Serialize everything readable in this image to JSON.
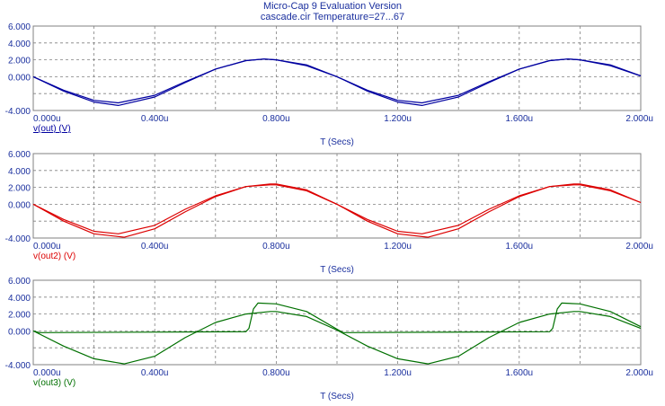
{
  "header": {
    "title": "Micro-Cap 9 Evaluation Version",
    "subtitle": "cascade.cir Temperature=27...67"
  },
  "chart_data": [
    {
      "type": "line",
      "xlabel": "T (Secs)",
      "trace_label": "v(out) (V)",
      "color": "#0000a0",
      "xlim": [
        0,
        2.0
      ],
      "ylim": [
        -4,
        6
      ],
      "x_ticks": [
        "0.000u",
        "0.400u",
        "0.800u",
        "1.200u",
        "1.600u",
        "2.000u"
      ],
      "y_ticks": [
        "6.000",
        "4.000",
        "2.000",
        "0.000",
        "-4.000"
      ],
      "grid": true,
      "series": [
        {
          "x": [
            0,
            0.1,
            0.2,
            0.28,
            0.4,
            0.5,
            0.6,
            0.7,
            0.76,
            0.8,
            0.9,
            1.0,
            1.1,
            1.2,
            1.28,
            1.4,
            1.5,
            1.6,
            1.7,
            1.76,
            1.8,
            1.9,
            2.0
          ],
          "values": [
            0,
            -1.6,
            -2.8,
            -3.1,
            -2.2,
            -0.6,
            0.9,
            1.9,
            2.1,
            2.0,
            1.3,
            0,
            -1.6,
            -2.8,
            -3.1,
            -2.2,
            -0.6,
            0.9,
            1.9,
            2.1,
            2.0,
            1.3,
            0.1
          ]
        },
        {
          "x": [
            0,
            0.1,
            0.2,
            0.28,
            0.4,
            0.5,
            0.6,
            0.7,
            0.76,
            0.8,
            0.9,
            1.0,
            1.1,
            1.2,
            1.28,
            1.4,
            1.5,
            1.6,
            1.7,
            1.76,
            1.8,
            1.9,
            2.0
          ],
          "values": [
            0,
            -1.7,
            -3.0,
            -3.4,
            -2.4,
            -0.7,
            0.9,
            1.9,
            2.1,
            2.0,
            1.4,
            0,
            -1.7,
            -3.0,
            -3.4,
            -2.4,
            -0.7,
            0.9,
            1.9,
            2.1,
            2.0,
            1.4,
            0.1
          ]
        }
      ]
    },
    {
      "type": "line",
      "xlabel": "T (Secs)",
      "trace_label": "v(out2) (V)",
      "color": "#dc0000",
      "xlim": [
        0,
        2.0
      ],
      "ylim": [
        -4,
        6
      ],
      "x_ticks": [
        "0.000u",
        "0.400u",
        "0.800u",
        "1.200u",
        "1.600u",
        "2.000u"
      ],
      "y_ticks": [
        "6.000",
        "4.000",
        "2.000",
        "0.000",
        "-4.000"
      ],
      "grid": true,
      "series": [
        {
          "x": [
            0,
            0.1,
            0.2,
            0.28,
            0.4,
            0.5,
            0.6,
            0.7,
            0.78,
            0.8,
            0.9,
            1.0,
            1.1,
            1.2,
            1.28,
            1.4,
            1.5,
            1.6,
            1.7,
            1.78,
            1.8,
            1.9,
            2.0
          ],
          "values": [
            0,
            -1.8,
            -3.2,
            -3.5,
            -2.5,
            -0.6,
            1.0,
            2.1,
            2.3,
            2.3,
            1.6,
            0,
            -1.8,
            -3.2,
            -3.5,
            -2.5,
            -0.6,
            1.0,
            2.1,
            2.3,
            2.3,
            1.6,
            0.2
          ]
        },
        {
          "x": [
            0,
            0.1,
            0.2,
            0.3,
            0.4,
            0.5,
            0.6,
            0.7,
            0.78,
            0.8,
            0.9,
            1.0,
            1.1,
            1.2,
            1.3,
            1.4,
            1.5,
            1.6,
            1.7,
            1.78,
            1.8,
            1.9,
            2.0
          ],
          "values": [
            0,
            -2.0,
            -3.5,
            -3.9,
            -2.9,
            -0.9,
            0.9,
            2.1,
            2.4,
            2.4,
            1.7,
            0,
            -2.0,
            -3.5,
            -3.9,
            -2.9,
            -0.9,
            0.9,
            2.1,
            2.4,
            2.4,
            1.7,
            0.2
          ]
        }
      ]
    },
    {
      "type": "line",
      "xlabel": "T (Secs)",
      "trace_label": "v(out3) (V)",
      "color": "#007000",
      "xlim": [
        0,
        2.0
      ],
      "ylim": [
        -4,
        6
      ],
      "x_ticks": [
        "0.000u",
        "0.400u",
        "0.800u",
        "1.200u",
        "1.600u",
        "2.000u"
      ],
      "y_ticks": [
        "6.000",
        "4.000",
        "2.000",
        "0.000",
        "-4.000"
      ],
      "grid": true,
      "series": [
        {
          "x": [
            0,
            0.1,
            0.2,
            0.3,
            0.4,
            0.5,
            0.6,
            0.7,
            0.78,
            0.8,
            0.9,
            1.0,
            1.1,
            1.2,
            1.3,
            1.4,
            1.5,
            1.6,
            1.7,
            1.78,
            1.8,
            1.9,
            2.0
          ],
          "values": [
            0,
            -1.8,
            -3.3,
            -3.9,
            -3.0,
            -0.8,
            1.0,
            2.0,
            2.3,
            2.3,
            1.7,
            0.1,
            -1.8,
            -3.3,
            -3.9,
            -3.0,
            -0.8,
            1.0,
            2.0,
            2.3,
            2.3,
            1.7,
            0.3
          ]
        },
        {
          "x": [
            0,
            0.02,
            0.7,
            0.71,
            0.725,
            0.74,
            0.8,
            0.9,
            1.0,
            1.02,
            1.7,
            1.71,
            1.725,
            1.74,
            1.8,
            1.9,
            2.0
          ],
          "values": [
            0,
            -0.2,
            -0.1,
            0.3,
            2.6,
            3.3,
            3.2,
            2.3,
            0.2,
            -0.2,
            -0.1,
            0.3,
            2.6,
            3.3,
            3.2,
            2.3,
            0.5
          ]
        }
      ]
    }
  ]
}
